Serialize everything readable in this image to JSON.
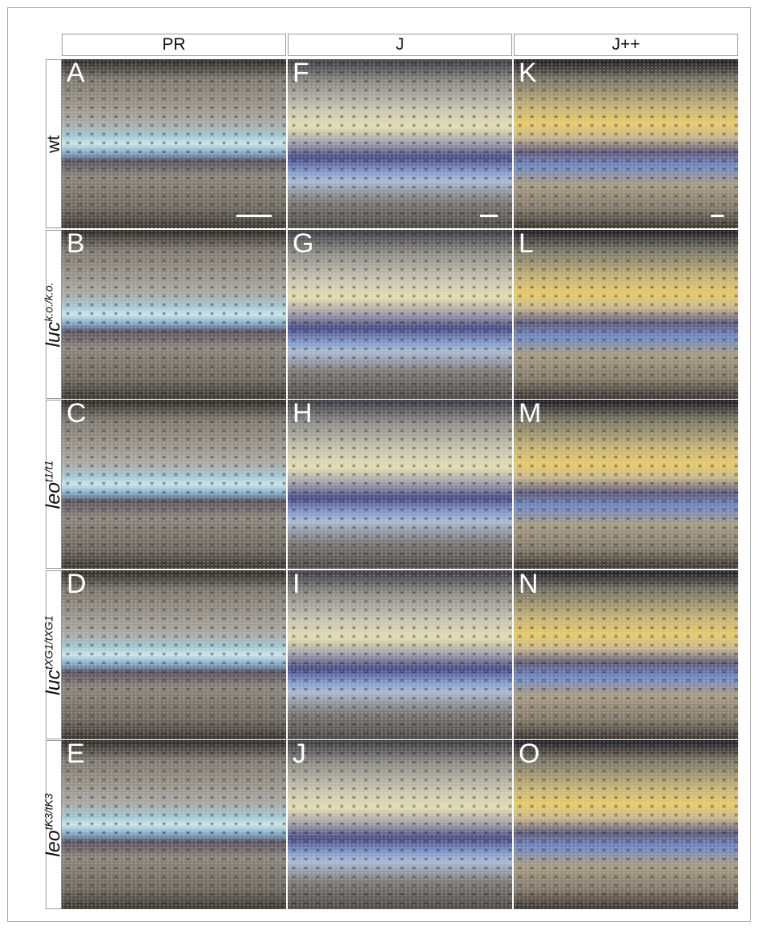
{
  "columns": [
    "PR",
    "J",
    "J++"
  ],
  "rows": [
    {
      "label": "wt",
      "panels": [
        "A",
        "F",
        "K"
      ]
    },
    {
      "label": "luc",
      "superscript": "k.o./k.o.",
      "panels": [
        "B",
        "G",
        "L"
      ]
    },
    {
      "label": "leo",
      "superscript": "t1/t1",
      "panels": [
        "C",
        "H",
        "M"
      ]
    },
    {
      "label": "luc",
      "superscript": "tXG1/tXG1",
      "panels": [
        "D",
        "I",
        "N"
      ]
    },
    {
      "label": "leo",
      "superscript": "tK3/tK3",
      "panels": [
        "E",
        "J",
        "O"
      ]
    }
  ]
}
